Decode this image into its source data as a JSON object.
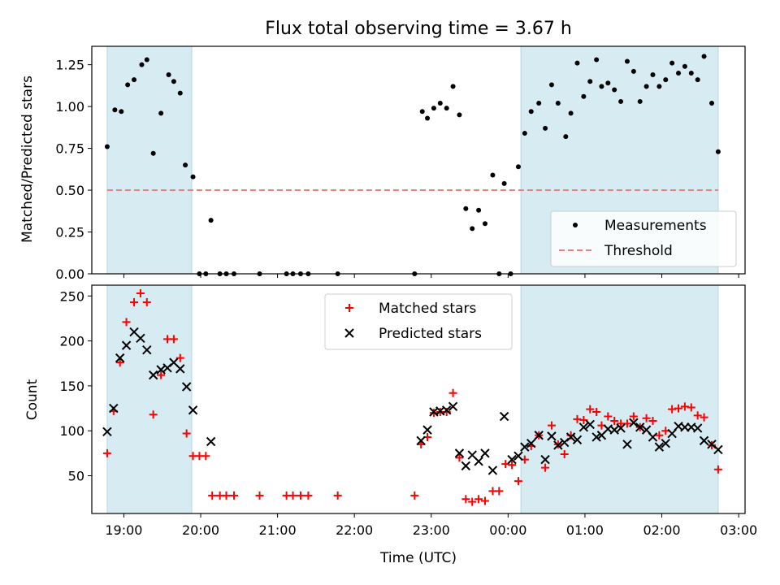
{
  "title": "Flux total observing time = 3.67 h",
  "chart_data": [
    {
      "type": "scatter",
      "title": "Flux total observing time = 3.67 h",
      "xlabel": "",
      "ylabel": "Matched/Predicted stars",
      "xlim": [
        "18:35",
        "03:05"
      ],
      "ylim": [
        0,
        1.36
      ],
      "yticks": [
        "0.00",
        "0.25",
        "0.50",
        "0.75",
        "1.00",
        "1.25"
      ],
      "shaded_spans": [
        {
          "from": "18:47",
          "to": "19:53",
          "color": "#add8e6"
        },
        {
          "from": "00:10",
          "to": "02:44",
          "color": "#add8e6"
        }
      ],
      "legend_location": "lower right",
      "series": [
        {
          "name": "Measurements",
          "marker": "dot",
          "color": "#000000",
          "points": [
            [
              "18:47",
              0.76
            ],
            [
              "18:53",
              0.98
            ],
            [
              "18:58",
              0.97
            ],
            [
              "19:03",
              1.13
            ],
            [
              "19:08",
              1.16
            ],
            [
              "19:14",
              1.25
            ],
            [
              "19:18",
              1.28
            ],
            [
              "19:23",
              0.72
            ],
            [
              "19:29",
              0.96
            ],
            [
              "19:35",
              1.19
            ],
            [
              "19:39",
              1.15
            ],
            [
              "19:44",
              1.08
            ],
            [
              "19:48",
              0.65
            ],
            [
              "19:54",
              0.58
            ],
            [
              "19:59",
              0.0
            ],
            [
              "20:04",
              0.0
            ],
            [
              "20:08",
              0.32
            ],
            [
              "20:15",
              0.0
            ],
            [
              "20:20",
              0.0
            ],
            [
              "20:26",
              0.0
            ],
            [
              "20:46",
              0.0
            ],
            [
              "21:07",
              0.0
            ],
            [
              "21:12",
              0.0
            ],
            [
              "21:18",
              0.0
            ],
            [
              "21:24",
              0.0
            ],
            [
              "21:47",
              0.0
            ],
            [
              "22:47",
              0.0
            ],
            [
              "22:53",
              0.97
            ],
            [
              "22:57",
              0.93
            ],
            [
              "23:02",
              0.99
            ],
            [
              "23:07",
              1.02
            ],
            [
              "23:12",
              0.99
            ],
            [
              "23:17",
              1.12
            ],
            [
              "23:22",
              0.95
            ],
            [
              "23:27",
              0.39
            ],
            [
              "23:32",
              0.27
            ],
            [
              "23:37",
              0.38
            ],
            [
              "23:42",
              0.3
            ],
            [
              "23:48",
              0.59
            ],
            [
              "23:53",
              0.0
            ],
            [
              "23:57",
              0.54
            ],
            [
              "00:02",
              0.0
            ],
            [
              "00:08",
              0.64
            ],
            [
              "00:13",
              0.84
            ],
            [
              "00:18",
              0.97
            ],
            [
              "00:24",
              1.02
            ],
            [
              "00:29",
              0.87
            ],
            [
              "00:34",
              1.13
            ],
            [
              "00:39",
              1.02
            ],
            [
              "00:45",
              0.82
            ],
            [
              "00:49",
              0.96
            ],
            [
              "00:54",
              1.26
            ],
            [
              "00:59",
              1.06
            ],
            [
              "01:04",
              1.15
            ],
            [
              "01:09",
              1.28
            ],
            [
              "01:13",
              1.12
            ],
            [
              "01:18",
              1.14
            ],
            [
              "01:23",
              1.1
            ],
            [
              "01:28",
              1.03
            ],
            [
              "01:33",
              1.27
            ],
            [
              "01:38",
              1.21
            ],
            [
              "01:43",
              1.03
            ],
            [
              "01:48",
              1.12
            ],
            [
              "01:53",
              1.19
            ],
            [
              "01:58",
              1.12
            ],
            [
              "02:03",
              1.16
            ],
            [
              "02:08",
              1.26
            ],
            [
              "02:13",
              1.2
            ],
            [
              "02:18",
              1.24
            ],
            [
              "02:23",
              1.2
            ],
            [
              "02:28",
              1.16
            ],
            [
              "02:33",
              1.3
            ],
            [
              "02:39",
              1.02
            ],
            [
              "02:44",
              0.73
            ]
          ]
        },
        {
          "name": "Threshold",
          "style": "dashed",
          "color": "#f08080",
          "points": [
            [
              "18:47",
              0.5
            ],
            [
              "02:44",
              0.5
            ]
          ]
        }
      ]
    },
    {
      "type": "scatter",
      "title": "",
      "xlabel": "Time (UTC)",
      "ylabel": "Count",
      "xlim": [
        "18:35",
        "03:05"
      ],
      "ylim": [
        8,
        262
      ],
      "xticks": [
        "19:00",
        "20:00",
        "21:00",
        "22:00",
        "23:00",
        "00:00",
        "01:00",
        "02:00",
        "03:00"
      ],
      "yticks": [
        "50",
        "100",
        "150",
        "200",
        "250"
      ],
      "shaded_spans": [
        {
          "from": "18:47",
          "to": "19:53",
          "color": "#add8e6"
        },
        {
          "from": "00:10",
          "to": "02:44",
          "color": "#add8e6"
        }
      ],
      "legend_location": "upper center",
      "series": [
        {
          "name": "Matched stars",
          "marker": "plus",
          "color": "#ff0000",
          "points": [
            [
              "18:47",
              75
            ],
            [
              "18:52",
              122
            ],
            [
              "18:57",
              176
            ],
            [
              "19:02",
              221
            ],
            [
              "19:08",
              243
            ],
            [
              "19:13",
              253
            ],
            [
              "19:18",
              243
            ],
            [
              "19:23",
              118
            ],
            [
              "19:29",
              162
            ],
            [
              "19:34",
              202
            ],
            [
              "19:39",
              202
            ],
            [
              "19:44",
              181
            ],
            [
              "19:49",
              97
            ],
            [
              "19:54",
              72
            ],
            [
              "19:59",
              72
            ],
            [
              "20:04",
              72
            ],
            [
              "20:09",
              28
            ],
            [
              "20:15",
              28
            ],
            [
              "20:20",
              28
            ],
            [
              "20:26",
              28
            ],
            [
              "20:46",
              28
            ],
            [
              "21:07",
              28
            ],
            [
              "21:12",
              28
            ],
            [
              "21:18",
              28
            ],
            [
              "21:24",
              28
            ],
            [
              "21:47",
              28
            ],
            [
              "22:47",
              28
            ],
            [
              "22:52",
              85
            ],
            [
              "22:57",
              93
            ],
            [
              "23:02",
              120
            ],
            [
              "23:07",
              121
            ],
            [
              "23:12",
              121
            ],
            [
              "23:17",
              142
            ],
            [
              "23:22",
              70
            ],
            [
              "23:27",
              24
            ],
            [
              "23:32",
              21
            ],
            [
              "23:37",
              24
            ],
            [
              "23:42",
              22
            ],
            [
              "23:48",
              33
            ],
            [
              "23:53",
              33
            ],
            [
              "23:58",
              63
            ],
            [
              "00:03",
              62
            ],
            [
              "00:08",
              44
            ],
            [
              "00:13",
              68
            ],
            [
              "00:18",
              83
            ],
            [
              "00:24",
              95
            ],
            [
              "00:29",
              59
            ],
            [
              "00:34",
              106
            ],
            [
              "00:39",
              85
            ],
            [
              "00:44",
              74
            ],
            [
              "00:49",
              95
            ],
            [
              "00:54",
              113
            ],
            [
              "00:59",
              112
            ],
            [
              "01:04",
              124
            ],
            [
              "01:09",
              121
            ],
            [
              "01:13",
              106
            ],
            [
              "01:18",
              116
            ],
            [
              "01:23",
              111
            ],
            [
              "01:28",
              108
            ],
            [
              "01:33",
              108
            ],
            [
              "01:38",
              116
            ],
            [
              "01:43",
              104
            ],
            [
              "01:48",
              114
            ],
            [
              "01:53",
              111
            ],
            [
              "01:58",
              95
            ],
            [
              "02:03",
              100
            ],
            [
              "02:08",
              124
            ],
            [
              "02:13",
              125
            ],
            [
              "02:18",
              127
            ],
            [
              "02:23",
              126
            ],
            [
              "02:28",
              117
            ],
            [
              "02:33",
              115
            ],
            [
              "02:39",
              84
            ],
            [
              "02:44",
              57
            ]
          ]
        },
        {
          "name": "Predicted stars",
          "marker": "x",
          "color": "#000000",
          "points": [
            [
              "18:47",
              99
            ],
            [
              "18:52",
              125
            ],
            [
              "18:57",
              181
            ],
            [
              "19:02",
              195
            ],
            [
              "19:08",
              210
            ],
            [
              "19:13",
              203
            ],
            [
              "19:18",
              190
            ],
            [
              "19:23",
              162
            ],
            [
              "19:29",
              168
            ],
            [
              "19:34",
              170
            ],
            [
              "19:39",
              176
            ],
            [
              "19:44",
              169
            ],
            [
              "19:49",
              149
            ],
            [
              "19:54",
              123
            ],
            [
              "20:08",
              88
            ],
            [
              "22:52",
              89
            ],
            [
              "22:57",
              101
            ],
            [
              "23:02",
              121
            ],
            [
              "23:07",
              122
            ],
            [
              "23:12",
              123
            ],
            [
              "23:17",
              127
            ],
            [
              "23:22",
              75
            ],
            [
              "23:27",
              61
            ],
            [
              "23:32",
              73
            ],
            [
              "23:37",
              66
            ],
            [
              "23:42",
              75
            ],
            [
              "23:48",
              56
            ],
            [
              "23:57",
              116
            ],
            [
              "00:03",
              68
            ],
            [
              "00:08",
              72
            ],
            [
              "00:13",
              82
            ],
            [
              "00:18",
              86
            ],
            [
              "00:24",
              95
            ],
            [
              "00:29",
              68
            ],
            [
              "00:34",
              94
            ],
            [
              "00:39",
              84
            ],
            [
              "00:44",
              87
            ],
            [
              "00:49",
              93
            ],
            [
              "00:54",
              90
            ],
            [
              "00:59",
              104
            ],
            [
              "01:04",
              107
            ],
            [
              "01:09",
              93
            ],
            [
              "01:13",
              95
            ],
            [
              "01:18",
              102
            ],
            [
              "01:23",
              101
            ],
            [
              "01:28",
              103
            ],
            [
              "01:33",
              85
            ],
            [
              "01:38",
              109
            ],
            [
              "01:43",
              104
            ],
            [
              "01:48",
              101
            ],
            [
              "01:53",
              93
            ],
            [
              "01:58",
              82
            ],
            [
              "02:03",
              86
            ],
            [
              "02:08",
              97
            ],
            [
              "02:13",
              105
            ],
            [
              "02:18",
              104
            ],
            [
              "02:23",
              104
            ],
            [
              "02:28",
              103
            ],
            [
              "02:33",
              89
            ],
            [
              "02:39",
              85
            ],
            [
              "02:44",
              79
            ]
          ]
        }
      ]
    }
  ]
}
